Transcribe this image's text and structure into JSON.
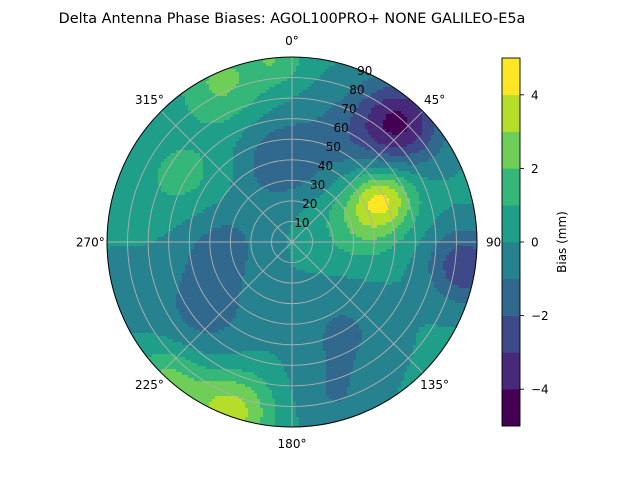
{
  "chart_data": {
    "type": "heatmap",
    "subtype": "polar-filled-contour",
    "title": "Delta Antenna Phase Biases: AGOL100PRO+     NONE GALILEO-E5a",
    "theta_zero": "top",
    "theta_direction": "clockwise",
    "angle_ticks": [
      {
        "deg": 0,
        "label": "0°"
      },
      {
        "deg": 45,
        "label": "45°"
      },
      {
        "deg": 90,
        "label": "90"
      },
      {
        "deg": 135,
        "label": "135°"
      },
      {
        "deg": 180,
        "label": "180°"
      },
      {
        "deg": 225,
        "label": "225°"
      },
      {
        "deg": 270,
        "label": "270°"
      },
      {
        "deg": 315,
        "label": "315°"
      }
    ],
    "radial_ticks": [
      10,
      20,
      30,
      40,
      50,
      60,
      70,
      80,
      90
    ],
    "radial_range": [
      0,
      90
    ],
    "grid": true,
    "colorbar": {
      "label": "Bias (mm)",
      "range": [
        -5,
        5
      ],
      "levels": [
        -5,
        -4,
        -3,
        -2,
        -1,
        0,
        1,
        2,
        3,
        4,
        5
      ],
      "ticks": [
        {
          "value": -4,
          "label": "−4"
        },
        {
          "value": -2,
          "label": "−2"
        },
        {
          "value": 0,
          "label": "0"
        },
        {
          "value": 2,
          "label": "2"
        },
        {
          "value": 4,
          "label": "4"
        }
      ],
      "colors": [
        "#440154",
        "#482878",
        "#3e4989",
        "#31688e",
        "#26828e",
        "#1f9e89",
        "#35b779",
        "#6ece58",
        "#b5de2b",
        "#fde725"
      ],
      "placement": "right"
    },
    "field": {
      "base": 0.2,
      "features": [
        {
          "theta": 42,
          "r": 78,
          "amp": -4.2,
          "spread": 15
        },
        {
          "theta": 25,
          "r": 55,
          "amp": -1.2,
          "spread": 18
        },
        {
          "theta": 64,
          "r": 49,
          "amp": 3.6,
          "spread": 11
        },
        {
          "theta": 75,
          "r": 34,
          "amp": 1.6,
          "spread": 14
        },
        {
          "theta": 98,
          "r": 85,
          "amp": -3.0,
          "spread": 13
        },
        {
          "theta": 200,
          "r": 88,
          "amp": 3.4,
          "spread": 14
        },
        {
          "theta": 222,
          "r": 90,
          "amp": 2.2,
          "spread": 12
        },
        {
          "theta": 336,
          "r": 85,
          "amp": 2.0,
          "spread": 14
        },
        {
          "theta": 355,
          "r": 90,
          "amp": 1.6,
          "spread": 10
        },
        {
          "theta": 300,
          "r": 60,
          "amp": 1.2,
          "spread": 16
        },
        {
          "theta": 350,
          "r": 40,
          "amp": -1.8,
          "spread": 14
        },
        {
          "theta": 270,
          "r": 35,
          "amp": -1.5,
          "spread": 16
        },
        {
          "theta": 230,
          "r": 55,
          "amp": -1.5,
          "spread": 18
        },
        {
          "theta": 150,
          "r": 50,
          "amp": -1.3,
          "spread": 18
        },
        {
          "theta": 165,
          "r": 80,
          "amp": -1.0,
          "spread": 14
        },
        {
          "theta": 255,
          "r": 86,
          "amp": -0.8,
          "spread": 12
        }
      ]
    }
  }
}
